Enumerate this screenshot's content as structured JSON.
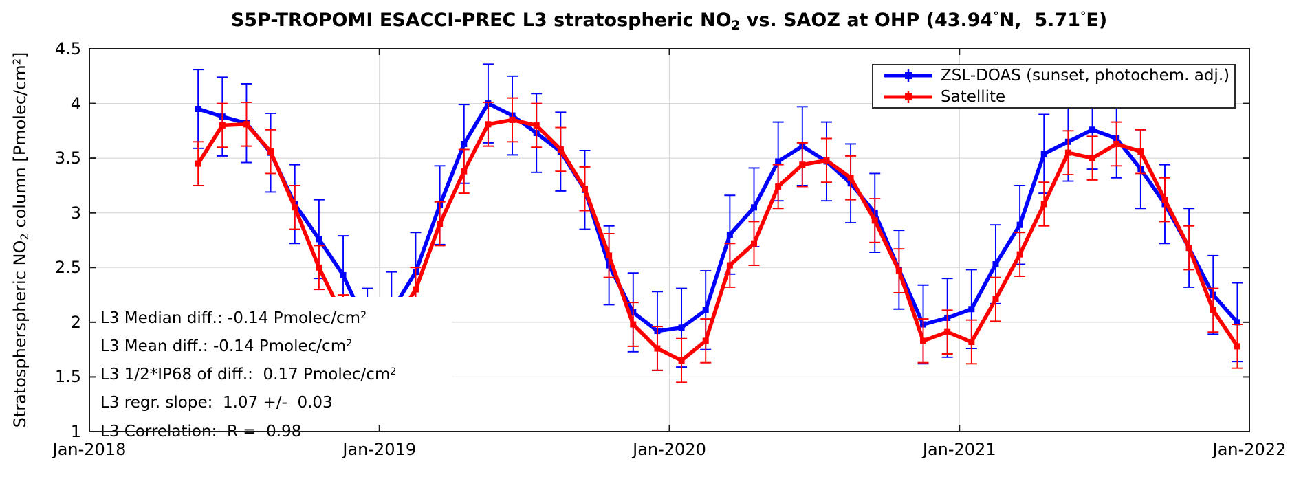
{
  "title": {
    "part1": "S5P-TROPOMI ESACCI-PREC L3 stratospheric NO",
    "sub": "2",
    "part2": " vs. SAOZ at OHP (43.94",
    "deg1": "°",
    "part3": "N,  5.71",
    "deg2": "°",
    "part4": "E)"
  },
  "y_axis": {
    "label_part1": "Stratospherspheric NO",
    "label_sub": "2",
    "label_part2": " column [Pmolec/cm",
    "label_sup": "2",
    "label_part3": "]",
    "ticks": [
      "1",
      "1.5",
      "2",
      "2.5",
      "3",
      "3.5",
      "4",
      "4.5"
    ],
    "tick_values": [
      1,
      1.5,
      2,
      2.5,
      3,
      3.5,
      4,
      4.5
    ],
    "range": [
      1,
      4.5
    ]
  },
  "x_axis": {
    "ticks": [
      {
        "label": "Jan-2018",
        "month": 0
      },
      {
        "label": "Jan-2019",
        "month": 12
      },
      {
        "label": "Jan-2020",
        "month": 24
      },
      {
        "label": "Jan-2021",
        "month": 36
      },
      {
        "label": "Jan-2022",
        "month": 48
      }
    ],
    "range_months": [
      0,
      48
    ]
  },
  "legend": {
    "entries": [
      {
        "label": "ZSL-DOAS (sunset, photochem. adj.)",
        "color": "#0000ff"
      },
      {
        "label": "Satellite",
        "color": "#ff0000"
      }
    ]
  },
  "stats_box": {
    "lines": [
      {
        "text": "L3 Median diff.: -0.14 Pmolec/cm",
        "sup": "2"
      },
      {
        "text": "L3 Mean diff.: -0.14 Pmolec/cm",
        "sup": "2"
      },
      {
        "text": "L3 1/2*IP68 of diff.:  0.17 Pmolec/cm",
        "sup": "2"
      },
      {
        "text": "L3 regr. slope:  1.07 +/-  0.03",
        "sup": ""
      },
      {
        "text": "L3 Correlation:  R =  0.98",
        "sup": ""
      }
    ]
  },
  "chart_data": {
    "type": "line",
    "title": "S5P-TROPOMI ESACCI-PREC L3 stratospheric NO2 vs. SAOZ at OHP (43.94°N, 5.71°E)",
    "ylabel": "Stratospherspheric NO2 column [Pmolec/cm2]",
    "xlabel": "",
    "ylim": [
      1,
      4.5
    ],
    "xlim": [
      "Jan-2018",
      "Jan-2022"
    ],
    "grid": true,
    "legend_position": "top-right",
    "error_bars": true,
    "x": [
      "May-2018",
      "Jun-2018",
      "Jul-2018",
      "Aug-2018",
      "Sep-2018",
      "Oct-2018",
      "Nov-2018",
      "Dec-2018",
      "Jan-2019",
      "Feb-2019",
      "Mar-2019",
      "Apr-2019",
      "May-2019",
      "Jun-2019",
      "Jul-2019",
      "Aug-2019",
      "Sep-2019",
      "Oct-2019",
      "Nov-2019",
      "Dec-2019",
      "Jan-2020",
      "Feb-2020",
      "Mar-2020",
      "Apr-2020",
      "May-2020",
      "Jun-2020",
      "Jul-2020",
      "Aug-2020",
      "Sep-2020",
      "Oct-2020",
      "Nov-2020",
      "Dec-2020",
      "Jan-2021",
      "Feb-2021",
      "Mar-2021",
      "Apr-2021",
      "May-2021",
      "Jun-2021",
      "Jul-2021",
      "Aug-2021",
      "Sep-2021",
      "Oct-2021",
      "Nov-2021",
      "Dec-2021"
    ],
    "series": [
      {
        "name": "ZSL-DOAS (sunset, photochem. adj.)",
        "color": "#0000ff",
        "error": 0.36,
        "values": [
          3.95,
          3.88,
          3.82,
          3.55,
          3.08,
          2.76,
          2.43,
          1.95,
          2.1,
          2.46,
          3.07,
          3.63,
          4.0,
          3.89,
          3.73,
          3.56,
          3.21,
          2.52,
          2.09,
          1.92,
          1.95,
          2.11,
          2.8,
          3.05,
          3.47,
          3.61,
          3.47,
          3.27,
          3.0,
          2.48,
          1.98,
          2.04,
          2.12,
          2.53,
          2.89,
          3.54,
          3.65,
          3.76,
          3.68,
          3.4,
          3.08,
          2.68,
          2.25,
          2.0
        ]
      },
      {
        "name": "Satellite",
        "color": "#ff0000",
        "error": 0.2,
        "values": [
          3.45,
          3.8,
          3.81,
          3.56,
          3.05,
          2.5,
          2.05,
          1.82,
          1.95,
          2.3,
          2.9,
          3.38,
          3.81,
          3.85,
          3.8,
          3.58,
          3.22,
          2.61,
          1.98,
          1.76,
          1.65,
          1.83,
          2.52,
          2.72,
          3.24,
          3.44,
          3.48,
          3.32,
          2.93,
          2.47,
          1.83,
          1.91,
          1.82,
          2.21,
          2.62,
          3.08,
          3.55,
          3.5,
          3.63,
          3.56,
          3.12,
          2.68,
          2.11,
          1.78
        ]
      }
    ],
    "note": "Winter 2018/19 trough values (Nov-2018 to Jan-2019) are occluded by the stats text box; those values are estimates."
  }
}
